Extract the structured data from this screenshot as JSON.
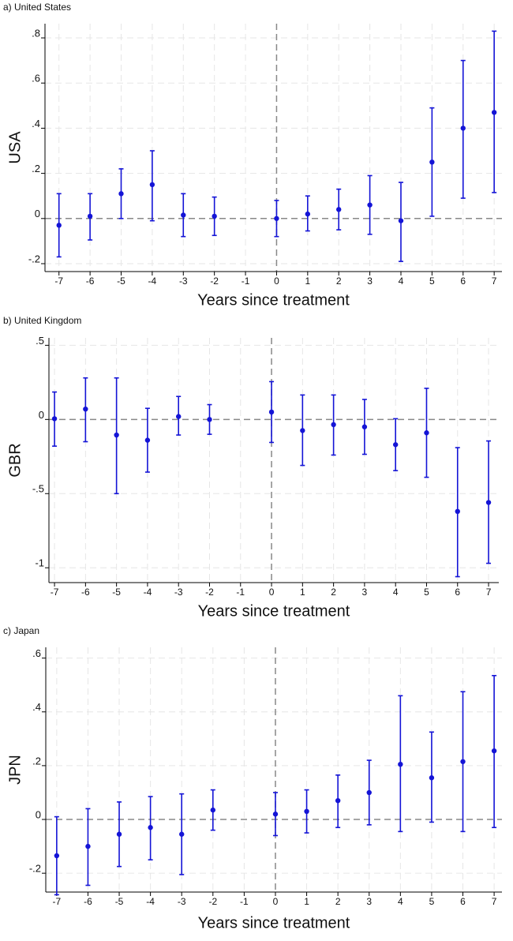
{
  "chart_data": [
    {
      "type": "errorbar",
      "title": "a) United States",
      "ylabel": "USA",
      "xlabel": "Years since treatment",
      "x": [
        -7,
        -6,
        -5,
        -4,
        -3,
        -2,
        0,
        1,
        2,
        3,
        4,
        5,
        6,
        7
      ],
      "values": [
        -0.03,
        0.01,
        0.11,
        0.15,
        0.015,
        0.01,
        0,
        0.02,
        0.04,
        0.06,
        -0.01,
        0.25,
        0.4,
        0.47
      ],
      "lower": [
        -0.17,
        -0.095,
        0.0,
        -0.01,
        -0.08,
        -0.075,
        -0.08,
        -0.055,
        -0.05,
        -0.07,
        -0.19,
        0.01,
        0.09,
        0.115
      ],
      "upper": [
        0.11,
        0.11,
        0.22,
        0.3,
        0.11,
        0.095,
        0.08,
        0.1,
        0.13,
        0.19,
        0.16,
        0.49,
        0.7,
        0.83
      ],
      "color": "#1414d6",
      "xlim": [
        -7.45,
        7.25
      ],
      "ylim": [
        -0.235,
        0.863
      ],
      "xticks": [
        -7,
        -6,
        -5,
        -4,
        -3,
        -2,
        -1,
        0,
        1,
        2,
        3,
        4,
        5,
        6,
        7
      ],
      "yticks": [
        {
          "value": -0.2,
          "label": "-.2"
        },
        0,
        {
          "value": 0.2,
          "label": ".2"
        },
        {
          "value": 0.4,
          "label": ".4"
        },
        {
          "value": 0.6,
          "label": ".6"
        },
        {
          "value": 0.8,
          "label": ".8"
        }
      ],
      "grid": true,
      "reference_lines": {
        "x": 0,
        "y": 0
      }
    },
    {
      "type": "errorbar",
      "title": "b) United Kingdom",
      "ylabel": "GBR",
      "xlabel": "Years since treatment",
      "x": [
        -7,
        -6,
        -5,
        -4,
        -3,
        -2,
        0,
        1,
        2,
        3,
        4,
        5,
        6,
        7
      ],
      "values": [
        0.005,
        0.07,
        -0.105,
        -0.14,
        0.02,
        0.0,
        0.05,
        -0.075,
        -0.035,
        -0.05,
        -0.17,
        -0.09,
        -0.62,
        -0.56
      ],
      "lower": [
        -0.18,
        -0.15,
        -0.5,
        -0.355,
        -0.105,
        -0.1,
        -0.155,
        -0.31,
        -0.24,
        -0.235,
        -0.345,
        -0.39,
        -1.06,
        -0.97
      ],
      "upper": [
        0.185,
        0.28,
        0.28,
        0.075,
        0.155,
        0.1,
        0.255,
        0.165,
        0.165,
        0.135,
        0.005,
        0.21,
        -0.19,
        -0.145
      ],
      "color": "#1414d6",
      "xlim": [
        -7.18,
        7.33
      ],
      "ylim": [
        -1.1,
        0.55
      ],
      "xticks": [
        -7,
        -6,
        -5,
        -4,
        -3,
        -2,
        -1,
        0,
        1,
        2,
        3,
        4,
        5,
        6,
        7
      ],
      "yticks": [
        -1,
        {
          "value": -0.5,
          "label": "-.5"
        },
        0,
        {
          "value": 0.5,
          "label": ".5"
        }
      ],
      "grid": true,
      "reference_lines": {
        "x": 0,
        "y": 0
      }
    },
    {
      "type": "errorbar",
      "title": "c) Japan",
      "ylabel": "JPN",
      "xlabel": "Years since treatment",
      "x": [
        -7,
        -6,
        -5,
        -4,
        -3,
        -2,
        0,
        1,
        2,
        3,
        4,
        5,
        6,
        7
      ],
      "values": [
        -0.135,
        -0.1,
        -0.055,
        -0.03,
        -0.055,
        0.035,
        0.02,
        0.03,
        0.07,
        0.1,
        0.205,
        0.155,
        0.215,
        0.255
      ],
      "lower": [
        -0.28,
        -0.245,
        -0.175,
        -0.15,
        -0.205,
        -0.04,
        -0.06,
        -0.05,
        -0.03,
        -0.02,
        -0.045,
        -0.01,
        -0.045,
        -0.03
      ],
      "upper": [
        0.01,
        0.04,
        0.065,
        0.085,
        0.095,
        0.11,
        0.1,
        0.11,
        0.165,
        0.22,
        0.46,
        0.325,
        0.475,
        0.535
      ],
      "color": "#1414d6",
      "xlim": [
        -7.35,
        7.25
      ],
      "ylim": [
        -0.27,
        0.64
      ],
      "xticks": [
        -7,
        -6,
        -5,
        -4,
        -3,
        -2,
        -1,
        0,
        1,
        2,
        3,
        4,
        5,
        6,
        7
      ],
      "yticks": [
        {
          "value": -0.2,
          "label": "-.2"
        },
        0,
        {
          "value": 0.2,
          "label": ".2"
        },
        {
          "value": 0.4,
          "label": ".4"
        },
        {
          "value": 0.6,
          "label": ".6"
        }
      ],
      "grid": true,
      "reference_lines": {
        "x": 0,
        "y": 0
      }
    }
  ]
}
